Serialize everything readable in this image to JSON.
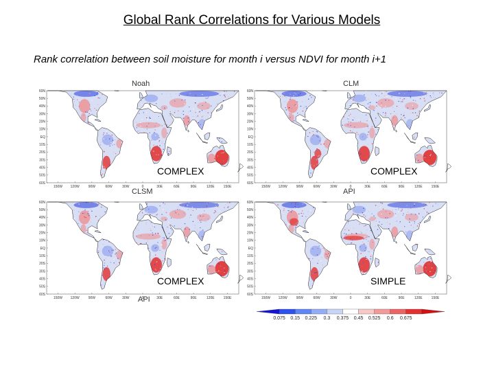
{
  "page": {
    "title": "Global Rank Correlations for Various Models",
    "subtitle": "Rank correlation between soil moisture for month i versus NDVI for month i+1"
  },
  "axes": {
    "lat_ticks": [
      "60N",
      "50N",
      "40N",
      "30N",
      "20N",
      "10N",
      "EQ",
      "10S",
      "20S",
      "30S",
      "40S",
      "50S",
      "60S"
    ],
    "lon_ticks_a": [
      "150W",
      "120W",
      "90W",
      "60W",
      "30W",
      "0",
      "30E",
      "60E",
      "90E",
      "120E",
      "150E"
    ],
    "lon_ticks_b": [
      "150W",
      "120W",
      "90W",
      "60W",
      "30W",
      "0",
      "30E",
      "60E",
      "90E",
      "120E",
      "150E"
    ]
  },
  "panels": [
    {
      "model": "Noah",
      "complexity": "COMPLEX"
    },
    {
      "model": "CLM",
      "complexity": "COMPLEX"
    },
    {
      "model": "CLSM",
      "complexity": "COMPLEX"
    },
    {
      "model": "API",
      "complexity": "SIMPLE"
    }
  ],
  "colorbar": {
    "labels": [
      "0.075",
      "0.15",
      "0.225",
      "0.3",
      "0.375",
      "0.45",
      "0.525",
      "0.6",
      "0.675"
    ],
    "colors": [
      "#1414d8",
      "#2d52f0",
      "#5f86f5",
      "#93aef6",
      "#c8d4f8",
      "#ffffff",
      "#f7c8c8",
      "#f29a9a",
      "#ec6464",
      "#e53030",
      "#d40f0f"
    ]
  },
  "colors": {
    "land_base": "#d8def4",
    "ocean": "#ffffff",
    "blue_strong": "#3348e0",
    "blue_mid": "#6f86ee",
    "red_strong": "#e2302e",
    "red_mid": "#f08a8a"
  }
}
